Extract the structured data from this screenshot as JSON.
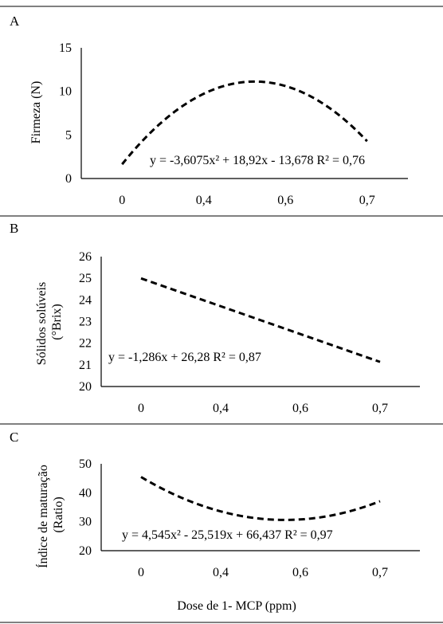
{
  "figure": {
    "xlabel": "Dose de 1- MCP (ppm)"
  },
  "chart_data": [
    {
      "type": "line",
      "panel_label": "A",
      "title": "",
      "ylabel": [
        "Firmeza (N)"
      ],
      "xlabel": "",
      "categories": [
        "0",
        "0,4",
        "0,6",
        "0,7"
      ],
      "yticks": [
        0,
        5,
        10,
        15
      ],
      "ylim": [
        0,
        15
      ],
      "grid": false,
      "equation": "y = -3,6075x² + 18,92x - 13,678 R² = 0,76",
      "trend": {
        "kind": "poly2",
        "a": -3.6075,
        "b": 18.92,
        "c": -13.678,
        "xpos": [
          1,
          4
        ]
      },
      "series": [
        {
          "values": [
            1.6,
            9.8,
            11.0,
            4.5
          ]
        }
      ]
    },
    {
      "type": "line",
      "panel_label": "B",
      "title": "",
      "ylabel": [
        "Sólidos solúveis",
        "(°Brix)"
      ],
      "xlabel": "",
      "categories": [
        "0",
        "0,4",
        "0,6",
        "0,7"
      ],
      "yticks": [
        20,
        21,
        22,
        23,
        24,
        25,
        26
      ],
      "ylim": [
        20,
        26
      ],
      "grid": false,
      "equation": "y = -1,286x + 26,28 R² = 0,87",
      "trend": {
        "kind": "linear",
        "a": -1.286,
        "b": 26.28,
        "xpos": [
          1,
          4
        ]
      },
      "series": [
        {
          "values": [
            25.0,
            23.7,
            22.4,
            21.1
          ]
        }
      ]
    },
    {
      "type": "line",
      "panel_label": "C",
      "title": "",
      "ylabel": [
        "Índice de maturação",
        "(Ratio)"
      ],
      "xlabel": "",
      "categories": [
        "0",
        "0,4",
        "0,6",
        "0,7"
      ],
      "yticks": [
        20,
        30,
        40,
        50
      ],
      "ylim": [
        20,
        50
      ],
      "grid": false,
      "equation": "y = 4,545x² - 25,519x + 66,437 R² = 0,97",
      "trend": {
        "kind": "poly2",
        "a": 4.545,
        "b": -25.519,
        "c": 66.437,
        "xpos": [
          1,
          4
        ]
      },
      "series": [
        {
          "values": [
            45.5,
            33.7,
            30.9,
            37.3
          ]
        }
      ]
    }
  ]
}
